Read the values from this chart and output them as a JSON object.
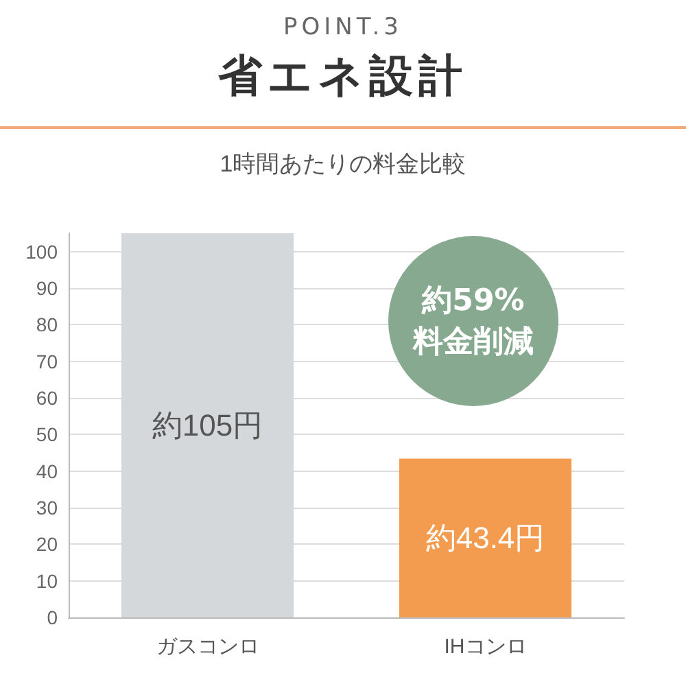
{
  "chart_data": {
    "type": "bar",
    "title": "POINT.3",
    "subtitle": "省エネ設計",
    "xlabel": "1時間あたりの料金比較",
    "categories": [
      "ガスコンロ",
      "IHコンロ"
    ],
    "values": [
      105,
      43.4
    ],
    "colors": [
      "#d5d8da",
      "#f39c50"
    ],
    "value_labels": [
      "約105円",
      "約43.4円"
    ],
    "ylim": [
      0,
      105
    ],
    "yticks": [
      0,
      10,
      20,
      30,
      40,
      50,
      60,
      70,
      80,
      90,
      100
    ],
    "grid": "y",
    "annotations": [
      "約59% 料金削減"
    ]
  }
}
